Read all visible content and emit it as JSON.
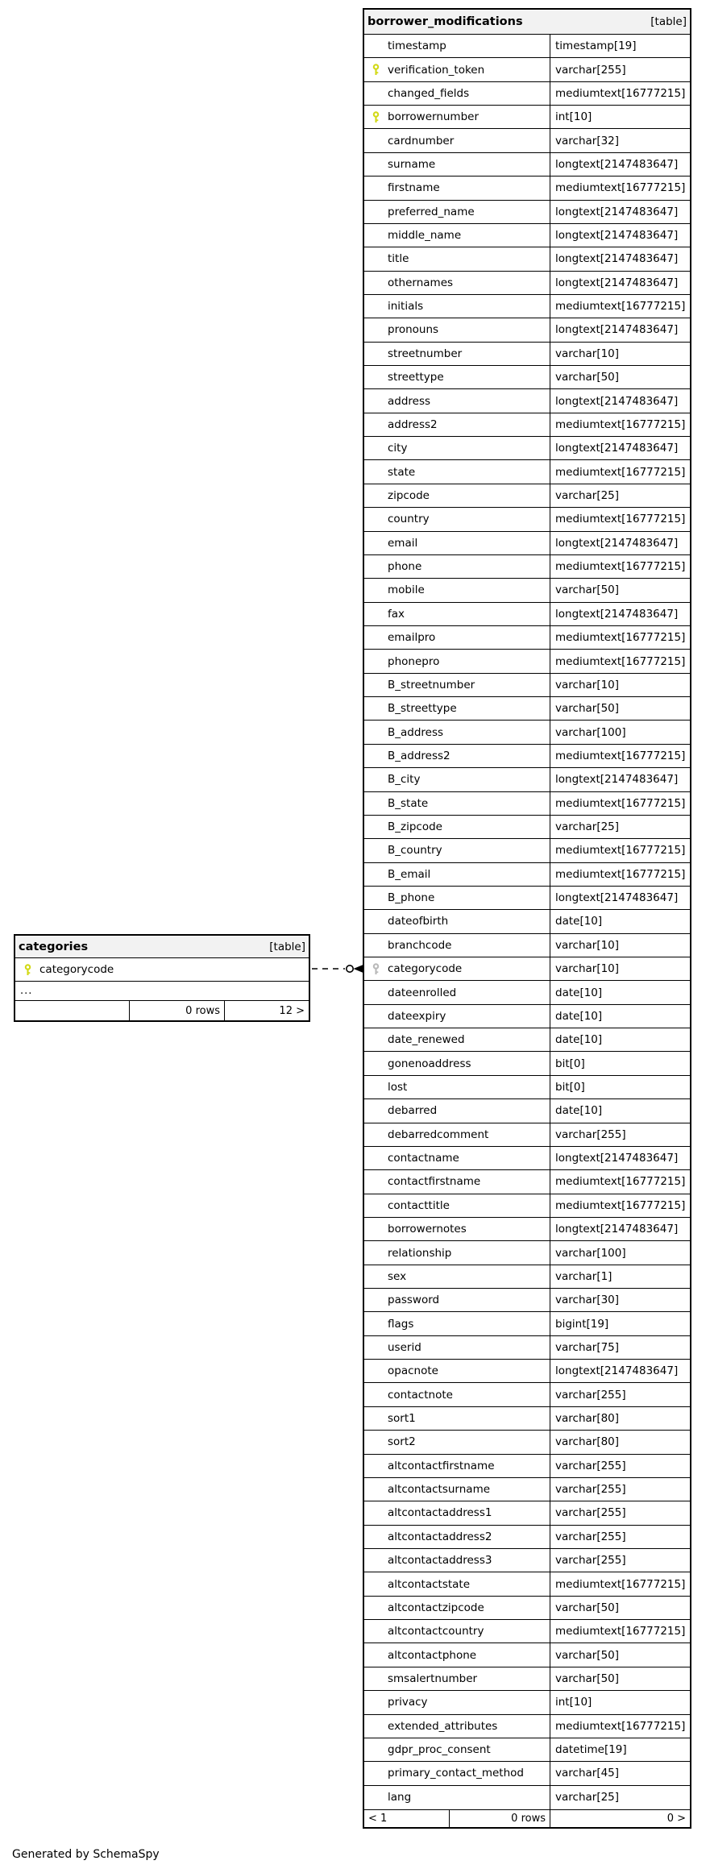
{
  "page": {
    "footer_note": "Generated by SchemaSpy"
  },
  "colors": {
    "primary_key_yellow": "#d2d915",
    "foreign_key_gray": "#b9b9b9",
    "header_bg": "#f2f2f2",
    "border": "#000000"
  },
  "relationship": {
    "style": "dashed",
    "from_table": "categories",
    "from_column": "categorycode",
    "to_table": "borrower_modifications",
    "to_column": "categorycode",
    "end_decoration": "open-circle-arrow"
  },
  "categories_table": {
    "title": "categories",
    "badge": "[table]",
    "columns": [
      {
        "name": "categorycode",
        "type": "",
        "key": "primary"
      }
    ],
    "ellipsis": "...",
    "footer": {
      "left": "",
      "middle": "0 rows",
      "right": "12 >"
    }
  },
  "main_table": {
    "title": "borrower_modifications",
    "badge": "[table]",
    "columns": [
      {
        "name": "timestamp",
        "type": "timestamp[19]",
        "key": null
      },
      {
        "name": "verification_token",
        "type": "varchar[255]",
        "key": "primary"
      },
      {
        "name": "changed_fields",
        "type": "mediumtext[16777215]",
        "key": null
      },
      {
        "name": "borrowernumber",
        "type": "int[10]",
        "key": "primary"
      },
      {
        "name": "cardnumber",
        "type": "varchar[32]",
        "key": null
      },
      {
        "name": "surname",
        "type": "longtext[2147483647]",
        "key": null
      },
      {
        "name": "firstname",
        "type": "mediumtext[16777215]",
        "key": null
      },
      {
        "name": "preferred_name",
        "type": "longtext[2147483647]",
        "key": null
      },
      {
        "name": "middle_name",
        "type": "longtext[2147483647]",
        "key": null
      },
      {
        "name": "title",
        "type": "longtext[2147483647]",
        "key": null
      },
      {
        "name": "othernames",
        "type": "longtext[2147483647]",
        "key": null
      },
      {
        "name": "initials",
        "type": "mediumtext[16777215]",
        "key": null
      },
      {
        "name": "pronouns",
        "type": "longtext[2147483647]",
        "key": null
      },
      {
        "name": "streetnumber",
        "type": "varchar[10]",
        "key": null
      },
      {
        "name": "streettype",
        "type": "varchar[50]",
        "key": null
      },
      {
        "name": "address",
        "type": "longtext[2147483647]",
        "key": null
      },
      {
        "name": "address2",
        "type": "mediumtext[16777215]",
        "key": null
      },
      {
        "name": "city",
        "type": "longtext[2147483647]",
        "key": null
      },
      {
        "name": "state",
        "type": "mediumtext[16777215]",
        "key": null
      },
      {
        "name": "zipcode",
        "type": "varchar[25]",
        "key": null
      },
      {
        "name": "country",
        "type": "mediumtext[16777215]",
        "key": null
      },
      {
        "name": "email",
        "type": "longtext[2147483647]",
        "key": null
      },
      {
        "name": "phone",
        "type": "mediumtext[16777215]",
        "key": null
      },
      {
        "name": "mobile",
        "type": "varchar[50]",
        "key": null
      },
      {
        "name": "fax",
        "type": "longtext[2147483647]",
        "key": null
      },
      {
        "name": "emailpro",
        "type": "mediumtext[16777215]",
        "key": null
      },
      {
        "name": "phonepro",
        "type": "mediumtext[16777215]",
        "key": null
      },
      {
        "name": "B_streetnumber",
        "type": "varchar[10]",
        "key": null
      },
      {
        "name": "B_streettype",
        "type": "varchar[50]",
        "key": null
      },
      {
        "name": "B_address",
        "type": "varchar[100]",
        "key": null
      },
      {
        "name": "B_address2",
        "type": "mediumtext[16777215]",
        "key": null
      },
      {
        "name": "B_city",
        "type": "longtext[2147483647]",
        "key": null
      },
      {
        "name": "B_state",
        "type": "mediumtext[16777215]",
        "key": null
      },
      {
        "name": "B_zipcode",
        "type": "varchar[25]",
        "key": null
      },
      {
        "name": "B_country",
        "type": "mediumtext[16777215]",
        "key": null
      },
      {
        "name": "B_email",
        "type": "mediumtext[16777215]",
        "key": null
      },
      {
        "name": "B_phone",
        "type": "longtext[2147483647]",
        "key": null
      },
      {
        "name": "dateofbirth",
        "type": "date[10]",
        "key": null
      },
      {
        "name": "branchcode",
        "type": "varchar[10]",
        "key": null
      },
      {
        "name": "categorycode",
        "type": "varchar[10]",
        "key": "foreign"
      },
      {
        "name": "dateenrolled",
        "type": "date[10]",
        "key": null
      },
      {
        "name": "dateexpiry",
        "type": "date[10]",
        "key": null
      },
      {
        "name": "date_renewed",
        "type": "date[10]",
        "key": null
      },
      {
        "name": "gonenoaddress",
        "type": "bit[0]",
        "key": null
      },
      {
        "name": "lost",
        "type": "bit[0]",
        "key": null
      },
      {
        "name": "debarred",
        "type": "date[10]",
        "key": null
      },
      {
        "name": "debarredcomment",
        "type": "varchar[255]",
        "key": null
      },
      {
        "name": "contactname",
        "type": "longtext[2147483647]",
        "key": null
      },
      {
        "name": "contactfirstname",
        "type": "mediumtext[16777215]",
        "key": null
      },
      {
        "name": "contacttitle",
        "type": "mediumtext[16777215]",
        "key": null
      },
      {
        "name": "borrowernotes",
        "type": "longtext[2147483647]",
        "key": null
      },
      {
        "name": "relationship",
        "type": "varchar[100]",
        "key": null
      },
      {
        "name": "sex",
        "type": "varchar[1]",
        "key": null
      },
      {
        "name": "password",
        "type": "varchar[30]",
        "key": null
      },
      {
        "name": "flags",
        "type": "bigint[19]",
        "key": null
      },
      {
        "name": "userid",
        "type": "varchar[75]",
        "key": null
      },
      {
        "name": "opacnote",
        "type": "longtext[2147483647]",
        "key": null
      },
      {
        "name": "contactnote",
        "type": "varchar[255]",
        "key": null
      },
      {
        "name": "sort1",
        "type": "varchar[80]",
        "key": null
      },
      {
        "name": "sort2",
        "type": "varchar[80]",
        "key": null
      },
      {
        "name": "altcontactfirstname",
        "type": "varchar[255]",
        "key": null
      },
      {
        "name": "altcontactsurname",
        "type": "varchar[255]",
        "key": null
      },
      {
        "name": "altcontactaddress1",
        "type": "varchar[255]",
        "key": null
      },
      {
        "name": "altcontactaddress2",
        "type": "varchar[255]",
        "key": null
      },
      {
        "name": "altcontactaddress3",
        "type": "varchar[255]",
        "key": null
      },
      {
        "name": "altcontactstate",
        "type": "mediumtext[16777215]",
        "key": null
      },
      {
        "name": "altcontactzipcode",
        "type": "varchar[50]",
        "key": null
      },
      {
        "name": "altcontactcountry",
        "type": "mediumtext[16777215]",
        "key": null
      },
      {
        "name": "altcontactphone",
        "type": "varchar[50]",
        "key": null
      },
      {
        "name": "smsalertnumber",
        "type": "varchar[50]",
        "key": null
      },
      {
        "name": "privacy",
        "type": "int[10]",
        "key": null
      },
      {
        "name": "extended_attributes",
        "type": "mediumtext[16777215]",
        "key": null
      },
      {
        "name": "gdpr_proc_consent",
        "type": "datetime[19]",
        "key": null
      },
      {
        "name": "primary_contact_method",
        "type": "varchar[45]",
        "key": null
      },
      {
        "name": "lang",
        "type": "varchar[25]",
        "key": null
      }
    ],
    "footer": {
      "left": "< 1",
      "middle": "0 rows",
      "right": "0 >"
    }
  }
}
